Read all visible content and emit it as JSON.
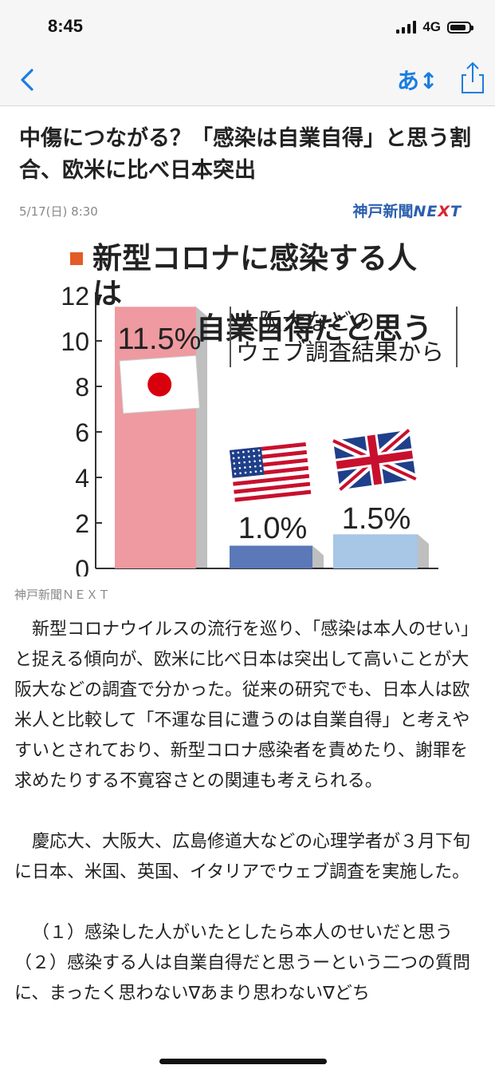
{
  "status_bar": {
    "time": "8:45",
    "network": "4G",
    "battery_level": 0.85
  },
  "nav": {
    "back_icon": "chevron-left-icon",
    "font_size_label": "あ↕",
    "share_icon": "share-icon",
    "accent_color": "#1a7de0"
  },
  "article": {
    "headline": "中傷につながる？「感染は自業自得」と思う割合、欧米に比べ日本突出",
    "date": "5/17(日) 8:30",
    "source_logo": {
      "name": "神戸新聞",
      "suffix_pre": "NE",
      "suffix_x": "X",
      "suffix_post": "T"
    },
    "image_caption": "神戸新聞ＮＥＸＴ",
    "paragraphs": [
      "新型コロナウイルスの流行を巡り、「感染は本人のせい」と捉える傾向が、欧米に比べ日本は突出して高いことが大阪大などの調査で分かった。従来の研究でも、日本人は欧米人と比較して「不運な目に遭うのは自業自得」と考えやすいとされており、新型コロナ感染者を責めたり、謝罪を求めたりする不寛容さとの関連も考えられる。",
      "慶応大、大阪大、広島修道大などの心理学者が３月下旬に日本、米国、英国、イタリアでウェブ調査を実施した。",
      "（１）感染した人がいたとしたら本人のせいだと思う（２）感染する人は自業自得だと思うーという二つの質問に、まったく思わない∇あまり思わない∇どち"
    ]
  },
  "chart_data": {
    "type": "bar",
    "title_line1": "新型コロナに感染する人は",
    "title_line2": "自業自得だと思う",
    "subtitle_line1": "大阪大などの",
    "subtitle_line2": "ウェブ調査結果から",
    "categories": [
      "Japan",
      "USA",
      "UK"
    ],
    "values": [
      11.5,
      1.0,
      1.5
    ],
    "value_labels": [
      "11.5%",
      "1.0%",
      "1.5%"
    ],
    "flag_icons": [
      "japan-flag-icon",
      "usa-flag-icon",
      "uk-flag-icon"
    ],
    "ylim": [
      0,
      12
    ],
    "yticks": [
      "0",
      "2",
      "4",
      "6",
      "8",
      "10",
      "12"
    ],
    "colors": [
      "#ee9aa0",
      "#5b78b8",
      "#a8c6e6"
    ],
    "legend_color": "#e35b28"
  }
}
